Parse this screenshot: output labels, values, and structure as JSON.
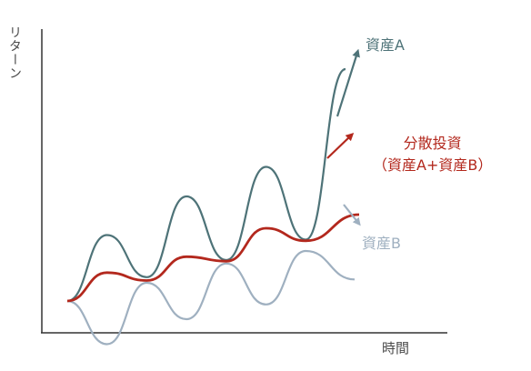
{
  "chart_data": {
    "type": "line",
    "xlabel": "時間",
    "ylabel": "リターン",
    "series": [
      {
        "name": "資産A",
        "color": "#4e7378",
        "values": [
          0.28,
          0.86,
          0.49,
          1.2,
          0.64,
          1.46,
          0.82,
          2.32
        ]
      },
      {
        "name": "分散投資",
        "sublabel": "（資産A+資産B）",
        "color": "#b3281d",
        "values": [
          0.28,
          0.53,
          0.46,
          0.67,
          0.63,
          0.92,
          0.81,
          1.04
        ]
      },
      {
        "name": "資産B",
        "color": "#9fb0c0",
        "values": [
          0.28,
          -0.1,
          0.44,
          0.12,
          0.61,
          0.25,
          0.72,
          0.47
        ]
      }
    ]
  }
}
